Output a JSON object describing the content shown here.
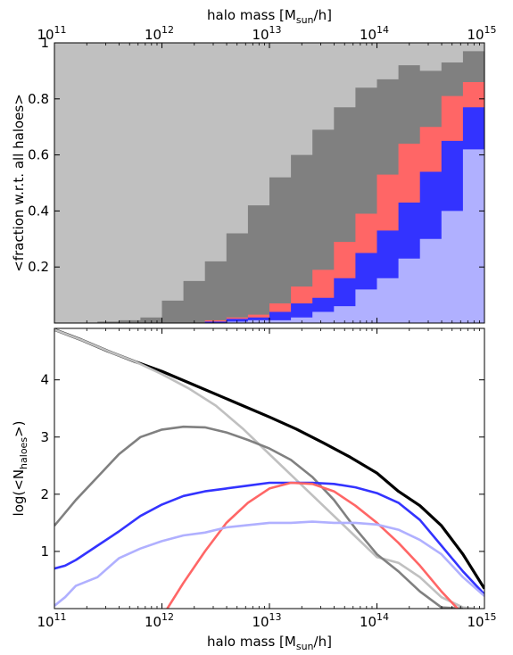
{
  "chart_data": [
    {
      "type": "area",
      "xscale": "log",
      "xlabel_top": "halo mass [M",
      "xlabel_top_sub": "sun",
      "xlabel_top_end": "/h]",
      "ylabel": "<fraction w.r.t. all haloes>",
      "xlim": [
        100000000000.0,
        1000000000000000.0
      ],
      "ylim": [
        0,
        1
      ],
      "xticks_labels": [
        "10",
        "10",
        "10",
        "10",
        "10"
      ],
      "xticks_exps": [
        "11",
        "12",
        "13",
        "14",
        "15"
      ],
      "yticks": [
        "0.2",
        "0.4",
        "0.6",
        "0.8",
        "1"
      ],
      "bin_edges_log": [
        11.0,
        11.2,
        11.4,
        11.6,
        11.8,
        12.0,
        12.2,
        12.4,
        12.6,
        12.8,
        13.0,
        13.2,
        13.4,
        13.6,
        13.8,
        14.0,
        14.2,
        14.4,
        14.6,
        14.8,
        15.0
      ],
      "background_color": "#c0c0c0",
      "layers": [
        {
          "color": "#808080",
          "values": [
            0.0,
            0.0,
            0.005,
            0.01,
            0.02,
            0.08,
            0.15,
            0.22,
            0.32,
            0.42,
            0.52,
            0.6,
            0.69,
            0.77,
            0.84,
            0.87,
            0.92,
            0.9,
            0.93,
            0.97
          ]
        },
        {
          "color": "#ff6666",
          "values": [
            0,
            0,
            0,
            0,
            0,
            0,
            0,
            0.01,
            0.02,
            0.03,
            0.07,
            0.13,
            0.19,
            0.29,
            0.39,
            0.53,
            0.64,
            0.7,
            0.81,
            0.86
          ]
        },
        {
          "color": "#3333ff",
          "values": [
            0,
            0,
            0,
            0,
            0,
            0,
            0,
            0.005,
            0.015,
            0.02,
            0.04,
            0.07,
            0.09,
            0.16,
            0.25,
            0.33,
            0.43,
            0.54,
            0.65,
            0.77
          ]
        },
        {
          "color": "#b0b0ff",
          "values": [
            0,
            0,
            0,
            0,
            0,
            0,
            0,
            0,
            0.005,
            0.01,
            0.01,
            0.02,
            0.04,
            0.06,
            0.12,
            0.16,
            0.23,
            0.3,
            0.4,
            0.62
          ]
        }
      ]
    },
    {
      "type": "line",
      "xscale": "log",
      "xlabel": "halo mass [M",
      "xlabel_sub": "sun",
      "xlabel_end": "/h]",
      "ylabel": "log(<N",
      "ylabel_sub": "haloes",
      "ylabel_end": ">)",
      "xlim": [
        100000000000.0,
        1000000000000000.0
      ],
      "ylim": [
        0,
        4.9
      ],
      "xticks_labels": [
        "10",
        "10",
        "10",
        "10",
        "10"
      ],
      "xticks_exps": [
        "11",
        "12",
        "13",
        "14",
        "15"
      ],
      "yticks": [
        "1",
        "2",
        "3",
        "4"
      ],
      "series": [
        {
          "color": "#000000",
          "width": 3.2,
          "x": [
            11.0,
            11.25,
            11.5,
            11.75,
            12.0,
            12.25,
            12.5,
            12.75,
            13.0,
            13.25,
            13.5,
            13.75,
            14.0,
            14.2,
            14.4,
            14.6,
            14.8,
            15.0
          ],
          "y": [
            4.88,
            4.7,
            4.5,
            4.32,
            4.15,
            3.95,
            3.75,
            3.55,
            3.35,
            3.14,
            2.9,
            2.65,
            2.37,
            2.05,
            1.8,
            1.45,
            0.95,
            0.35
          ]
        },
        {
          "color": "#c0c0c0",
          "width": 2.6,
          "x": [
            11.0,
            11.25,
            11.5,
            11.75,
            12.0,
            12.25,
            12.5,
            12.75,
            13.0,
            13.25,
            13.5,
            13.75,
            14.0,
            14.2,
            14.4,
            14.6,
            14.8,
            14.9
          ],
          "y": [
            4.88,
            4.7,
            4.5,
            4.32,
            4.1,
            3.85,
            3.55,
            3.15,
            2.7,
            2.25,
            1.8,
            1.35,
            0.9,
            0.8,
            0.55,
            0.2,
            0.02,
            0.0
          ]
        },
        {
          "color": "#808080",
          "width": 2.6,
          "x": [
            11.0,
            11.2,
            11.4,
            11.6,
            11.8,
            12.0,
            12.2,
            12.4,
            12.6,
            12.8,
            13.0,
            13.2,
            13.4,
            13.6,
            13.8,
            14.0,
            14.2,
            14.4,
            14.6,
            14.8
          ],
          "y": [
            1.45,
            1.9,
            2.3,
            2.7,
            3.0,
            3.13,
            3.18,
            3.17,
            3.08,
            2.95,
            2.8,
            2.6,
            2.3,
            1.9,
            1.4,
            0.95,
            0.65,
            0.3,
            0.02,
            0.0
          ]
        },
        {
          "color": "#3333ff",
          "width": 2.6,
          "x": [
            11.0,
            11.1,
            11.2,
            11.4,
            11.6,
            11.8,
            12.0,
            12.2,
            12.4,
            12.6,
            12.8,
            13.0,
            13.2,
            13.4,
            13.6,
            13.8,
            14.0,
            14.2,
            14.4,
            14.6,
            14.8,
            15.0
          ],
          "y": [
            0.7,
            0.75,
            0.85,
            1.1,
            1.35,
            1.62,
            1.82,
            1.97,
            2.05,
            2.1,
            2.15,
            2.2,
            2.2,
            2.2,
            2.18,
            2.12,
            2.02,
            1.85,
            1.55,
            1.1,
            0.65,
            0.25
          ]
        },
        {
          "color": "#ff6666",
          "width": 2.6,
          "x": [
            12.05,
            12.2,
            12.4,
            12.6,
            12.8,
            13.0,
            13.2,
            13.4,
            13.6,
            13.8,
            14.0,
            14.2,
            14.4,
            14.6,
            14.75
          ],
          "y": [
            0.0,
            0.45,
            1.0,
            1.5,
            1.85,
            2.1,
            2.2,
            2.18,
            2.05,
            1.8,
            1.5,
            1.15,
            0.75,
            0.3,
            0.0
          ]
        },
        {
          "color": "#b0b0ff",
          "width": 2.6,
          "x": [
            11.0,
            11.1,
            11.2,
            11.4,
            11.6,
            11.8,
            12.0,
            12.2,
            12.4,
            12.6,
            12.8,
            13.0,
            13.2,
            13.4,
            13.6,
            13.8,
            14.0,
            14.2,
            14.4,
            14.6,
            14.8,
            15.0
          ],
          "y": [
            0.05,
            0.2,
            0.4,
            0.55,
            0.88,
            1.05,
            1.18,
            1.28,
            1.33,
            1.42,
            1.46,
            1.5,
            1.5,
            1.52,
            1.5,
            1.5,
            1.47,
            1.38,
            1.2,
            0.95,
            0.55,
            0.22
          ]
        }
      ]
    }
  ]
}
